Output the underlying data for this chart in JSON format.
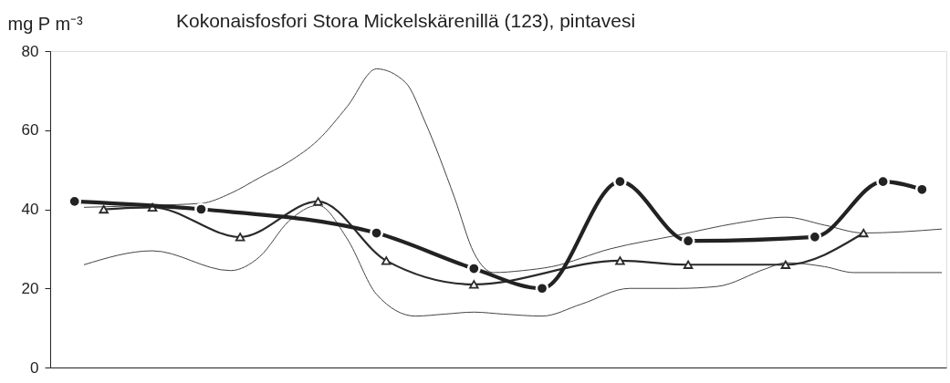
{
  "chart_data": {
    "type": "line",
    "title": "Kokonaisfosfori Stora Mickelskärenillä (123), pintavesi",
    "ylabel": "mg P m⁻³",
    "categories": [
      null,
      null,
      null,
      null,
      null,
      null,
      null,
      null,
      null,
      null,
      null,
      null,
      null,
      null,
      null,
      null,
      null,
      null,
      null,
      null,
      null,
      null,
      null,
      null,
      null,
      null,
      null,
      null,
      null,
      null,
      null,
      null,
      null,
      null,
      null,
      null,
      null,
      null,
      null,
      null,
      null,
      null,
      null,
      null,
      null,
      null,
      null,
      null,
      null,
      null,
      null,
      null,
      null,
      null,
      null,
      null,
      null,
      null,
      null,
      null,
      null,
      null,
      null,
      null,
      null,
      null,
      null,
      null,
      null,
      null,
      null,
      null,
      null,
      null,
      null,
      null,
      null,
      null,
      null,
      null,
      null,
      null,
      null,
      null,
      null,
      null,
      null,
      null,
      null,
      null,
      null,
      null
    ],
    "ylim": [
      0,
      80
    ],
    "yticks": [
      0,
      20,
      40,
      60,
      80
    ],
    "tick_labels": "y",
    "series": [
      {
        "color": "#444444",
        "marker": "none",
        "values": [
          null,
          null,
          null,
          40.5,
          null,
          null,
          null,
          null,
          null,
          null,
          41,
          null,
          null,
          null,
          null,
          41.5,
          null,
          null,
          44,
          null,
          null,
          48,
          null,
          null,
          52,
          null,
          null,
          57.5,
          null,
          null,
          66,
          null,
          null,
          75.5,
          null,
          null,
          72,
          null,
          62,
          null,
          null,
          43,
          null,
          29,
          null,
          24,
          null,
          null,
          24.5,
          null,
          null,
          25.5,
          null,
          null,
          null,
          null,
          null,
          30,
          null,
          null,
          null,
          null,
          null,
          null,
          33.5,
          null,
          null,
          null,
          null,
          null,
          36.5,
          null,
          null,
          null,
          null,
          38,
          null,
          null,
          null,
          36,
          null,
          null,
          null,
          34,
          null,
          null,
          null,
          null,
          null,
          null,
          null,
          35
        ]
      },
      {
        "color": "#444444",
        "marker": "none",
        "values": [
          null,
          null,
          null,
          26,
          null,
          null,
          null,
          null,
          null,
          null,
          29.5,
          null,
          null,
          null,
          null,
          null,
          null,
          null,
          24.5,
          null,
          null,
          28,
          null,
          null,
          37,
          null,
          null,
          41,
          null,
          null,
          32.5,
          null,
          null,
          18.5,
          null,
          null,
          null,
          13,
          null,
          null,
          13.5,
          null,
          null,
          14,
          null,
          null,
          13.5,
          null,
          null,
          null,
          13,
          null,
          null,
          null,
          16,
          null,
          null,
          null,
          null,
          20,
          null,
          null,
          null,
          null,
          20,
          null,
          null,
          null,
          20.5,
          null,
          null,
          null,
          null,
          25,
          null,
          26.5,
          null,
          null,
          null,
          25.5,
          null,
          null,
          24,
          null,
          null,
          null,
          null,
          null,
          null,
          null,
          null,
          24
        ]
      },
      {
        "color": "#2a2a2a",
        "marker": "triangle",
        "values": [
          null,
          null,
          null,
          null,
          null,
          40,
          null,
          null,
          null,
          null,
          40.5,
          null,
          null,
          null,
          null,
          null,
          null,
          null,
          null,
          33,
          null,
          null,
          null,
          null,
          null,
          null,
          null,
          42,
          null,
          null,
          null,
          null,
          null,
          null,
          27,
          null,
          null,
          null,
          null,
          null,
          null,
          null,
          null,
          21,
          null,
          null,
          null,
          null,
          null,
          null,
          null,
          null,
          null,
          null,
          null,
          null,
          null,
          null,
          27,
          null,
          null,
          null,
          null,
          null,
          null,
          26,
          null,
          null,
          null,
          null,
          null,
          null,
          null,
          null,
          null,
          26,
          null,
          null,
          null,
          null,
          null,
          null,
          null,
          34,
          null,
          null,
          null,
          null,
          null,
          null,
          null,
          null
        ]
      },
      {
        "color": "#222222",
        "marker": "circle",
        "values": [
          null,
          null,
          42,
          null,
          null,
          null,
          null,
          null,
          null,
          null,
          null,
          null,
          null,
          null,
          null,
          40,
          null,
          null,
          null,
          null,
          null,
          null,
          null,
          null,
          null,
          null,
          null,
          null,
          null,
          null,
          null,
          null,
          null,
          34,
          null,
          null,
          null,
          null,
          null,
          null,
          null,
          null,
          null,
          25,
          null,
          null,
          null,
          null,
          null,
          null,
          20,
          null,
          null,
          null,
          null,
          null,
          null,
          null,
          47,
          null,
          null,
          null,
          null,
          null,
          null,
          32,
          null,
          null,
          null,
          null,
          null,
          null,
          null,
          null,
          null,
          null,
          null,
          null,
          33,
          null,
          null,
          null,
          null,
          null,
          null,
          47,
          null,
          null,
          null,
          45,
          null,
          null
        ]
      }
    ]
  }
}
